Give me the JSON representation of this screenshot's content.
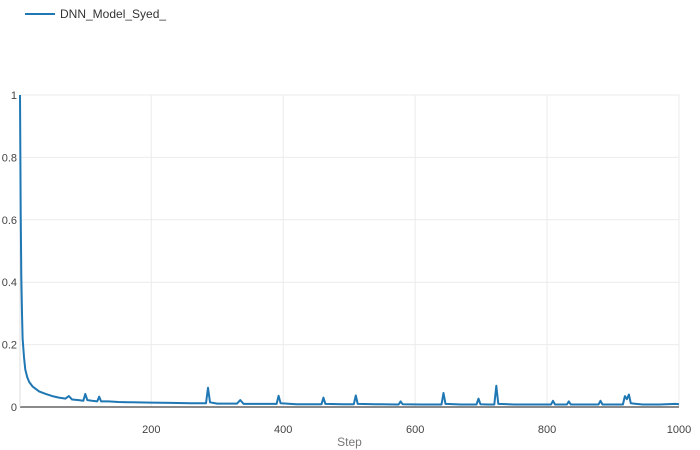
{
  "chart_data": {
    "type": "line",
    "title": "",
    "xlabel": "Step",
    "ylabel": "",
    "xlim": [
      1,
      1000
    ],
    "ylim": [
      0,
      1
    ],
    "x_ticks": [
      200,
      400,
      600,
      800,
      1000
    ],
    "y_ticks": [
      0,
      0.2,
      0.4,
      0.6,
      0.8,
      1
    ],
    "x_tick_labels": [
      "200",
      "400",
      "600",
      "800",
      "1000"
    ],
    "y_tick_labels": [
      "0",
      "0.2",
      "0.4",
      "0.6",
      "0.8",
      "1"
    ],
    "grid": true,
    "legend_position": "top-left",
    "series": [
      {
        "name": "DNN_Model_Syed_",
        "color": "#1f77b4",
        "points": [
          [
            1,
            1.0
          ],
          [
            2,
            0.62
          ],
          [
            3,
            0.42
          ],
          [
            4,
            0.3
          ],
          [
            5,
            0.22
          ],
          [
            7,
            0.16
          ],
          [
            9,
            0.12
          ],
          [
            12,
            0.095
          ],
          [
            15,
            0.08
          ],
          [
            20,
            0.066
          ],
          [
            25,
            0.058
          ],
          [
            30,
            0.05
          ],
          [
            40,
            0.042
          ],
          [
            50,
            0.035
          ],
          [
            60,
            0.03
          ],
          [
            70,
            0.027
          ],
          [
            75,
            0.035
          ],
          [
            80,
            0.024
          ],
          [
            90,
            0.022
          ],
          [
            97,
            0.02
          ],
          [
            100,
            0.042
          ],
          [
            103,
            0.022
          ],
          [
            110,
            0.02
          ],
          [
            118,
            0.018
          ],
          [
            121,
            0.033
          ],
          [
            124,
            0.018
          ],
          [
            135,
            0.018
          ],
          [
            150,
            0.016
          ],
          [
            170,
            0.015
          ],
          [
            200,
            0.014
          ],
          [
            230,
            0.013
          ],
          [
            260,
            0.012
          ],
          [
            283,
            0.012
          ],
          [
            286,
            0.062
          ],
          [
            289,
            0.015
          ],
          [
            300,
            0.011
          ],
          [
            330,
            0.011
          ],
          [
            335,
            0.022
          ],
          [
            340,
            0.01
          ],
          [
            360,
            0.01
          ],
          [
            390,
            0.01
          ],
          [
            393,
            0.036
          ],
          [
            396,
            0.012
          ],
          [
            420,
            0.009
          ],
          [
            458,
            0.009
          ],
          [
            461,
            0.03
          ],
          [
            464,
            0.01
          ],
          [
            490,
            0.009
          ],
          [
            507,
            0.009
          ],
          [
            510,
            0.037
          ],
          [
            513,
            0.01
          ],
          [
            540,
            0.009
          ],
          [
            575,
            0.008
          ],
          [
            578,
            0.018
          ],
          [
            581,
            0.009
          ],
          [
            610,
            0.008
          ],
          [
            640,
            0.008
          ],
          [
            643,
            0.045
          ],
          [
            646,
            0.01
          ],
          [
            670,
            0.008
          ],
          [
            693,
            0.008
          ],
          [
            696,
            0.027
          ],
          [
            699,
            0.009
          ],
          [
            710,
            0.008
          ],
          [
            720,
            0.008
          ],
          [
            723,
            0.068
          ],
          [
            726,
            0.01
          ],
          [
            750,
            0.008
          ],
          [
            780,
            0.008
          ],
          [
            806,
            0.008
          ],
          [
            809,
            0.02
          ],
          [
            812,
            0.008
          ],
          [
            830,
            0.008
          ],
          [
            833,
            0.018
          ],
          [
            836,
            0.008
          ],
          [
            870,
            0.008
          ],
          [
            878,
            0.008
          ],
          [
            881,
            0.02
          ],
          [
            884,
            0.008
          ],
          [
            900,
            0.008
          ],
          [
            915,
            0.008
          ],
          [
            918,
            0.035
          ],
          [
            921,
            0.025
          ],
          [
            924,
            0.04
          ],
          [
            927,
            0.012
          ],
          [
            945,
            0.008
          ],
          [
            970,
            0.008
          ],
          [
            995,
            0.01
          ],
          [
            1000,
            0.009
          ]
        ]
      }
    ]
  }
}
